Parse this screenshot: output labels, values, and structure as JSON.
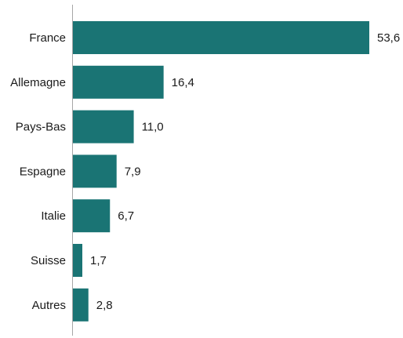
{
  "chart_data": {
    "type": "bar",
    "orientation": "horizontal",
    "categories": [
      "France",
      "Allemagne",
      "Pays-Bas",
      "Espagne",
      "Italie",
      "Suisse",
      "Autres"
    ],
    "values": [
      53.6,
      16.4,
      11.0,
      7.9,
      6.7,
      1.7,
      2.8
    ],
    "value_labels": [
      "53,6",
      "16,4",
      "11,0",
      "7,9",
      "6,7",
      "1,7",
      "2,8"
    ],
    "title": "",
    "xlabel": "",
    "ylabel": "",
    "xlim": [
      0,
      53.6
    ],
    "grid": false,
    "legend": "none",
    "bar_color": "#1a7474"
  }
}
